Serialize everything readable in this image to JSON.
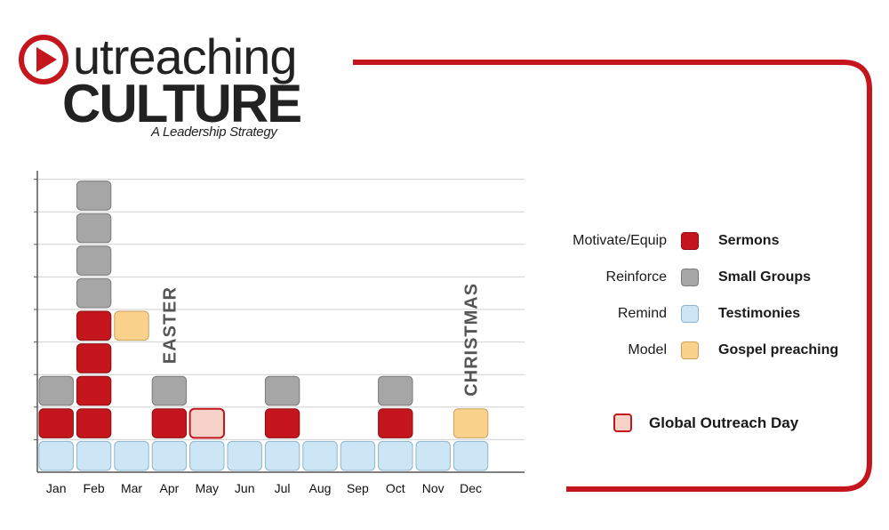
{
  "logo": {
    "word1": "utreaching",
    "word2": "CULTURE",
    "tagline": "A Leadership Strategy",
    "icon": "play-circle-icon"
  },
  "colors": {
    "accent_red": "#c4161c",
    "sermons": "#c4161c",
    "small_groups": "#a6a6a6",
    "testimonies": "#cce6f6",
    "gospel": "#fad28c",
    "global_outreach": "#f6d2c9"
  },
  "chart_data": {
    "type": "bar",
    "stacked": true,
    "categories": [
      "Jan",
      "Feb",
      "Mar",
      "Apr",
      "May",
      "Jun",
      "Jul",
      "Aug",
      "Sep",
      "Oct",
      "Nov",
      "Dec"
    ],
    "series": [
      {
        "name": "Testimonies",
        "color": "#cce6f6",
        "values": [
          1,
          1,
          1,
          1,
          1,
          1,
          1,
          1,
          1,
          1,
          1,
          1
        ]
      },
      {
        "name": "Sermons",
        "color": "#c4161c",
        "values": [
          1,
          4,
          0,
          1,
          0,
          0,
          1,
          0,
          0,
          1,
          0,
          0
        ]
      },
      {
        "name": "Global Outreach Day",
        "color": "#f6d2c9",
        "values": [
          0,
          0,
          0,
          0,
          1,
          0,
          0,
          0,
          0,
          0,
          0,
          0
        ]
      },
      {
        "name": "Gospel preaching",
        "color": "#fad28c",
        "values": [
          0,
          0,
          1,
          0,
          0,
          0,
          0,
          0,
          0,
          0,
          0,
          1
        ]
      },
      {
        "name": "Small Groups",
        "color": "#a6a6a6",
        "values": [
          1,
          4,
          0,
          1,
          0,
          0,
          1,
          0,
          0,
          1,
          0,
          0
        ]
      }
    ],
    "stack_layout": [
      [
        "Testimonies",
        "Sermons",
        "Small Groups"
      ],
      [
        "Testimonies",
        "Sermons",
        "Sermons",
        "Sermons",
        "Sermons",
        "Small Groups",
        "Small Groups",
        "Small Groups",
        "Small Groups"
      ],
      [
        "Testimonies",
        "",
        "",
        "",
        "Gospel preaching"
      ],
      [
        "Testimonies",
        "Sermons",
        "Small Groups"
      ],
      [
        "Testimonies",
        "Global Outreach Day"
      ],
      [
        "Testimonies"
      ],
      [
        "Testimonies",
        "Sermons",
        "Small Groups"
      ],
      [
        "Testimonies"
      ],
      [
        "Testimonies"
      ],
      [
        "Testimonies",
        "Sermons",
        "Small Groups"
      ],
      [
        "Testimonies"
      ],
      [
        "Testimonies",
        "Gospel preaching"
      ]
    ],
    "ylim": [
      0,
      9
    ],
    "grid": true,
    "annotations": [
      {
        "text": "EASTER",
        "category": "Apr"
      },
      {
        "text": "CHRISTMAS",
        "category": "Dec"
      }
    ]
  },
  "legend": [
    {
      "role": "Motivate/Equip",
      "name": "Sermons",
      "color": "#c4161c"
    },
    {
      "role": "Reinforce",
      "name": "Small Groups",
      "color": "#a6a6a6"
    },
    {
      "role": "Remind",
      "name": "Testimonies",
      "color": "#cce6f6"
    },
    {
      "role": "Model",
      "name": "Gospel preaching",
      "color": "#fad28c"
    }
  ],
  "special_legend": {
    "name": "Global Outreach Day",
    "color": "#f6d2c9"
  }
}
